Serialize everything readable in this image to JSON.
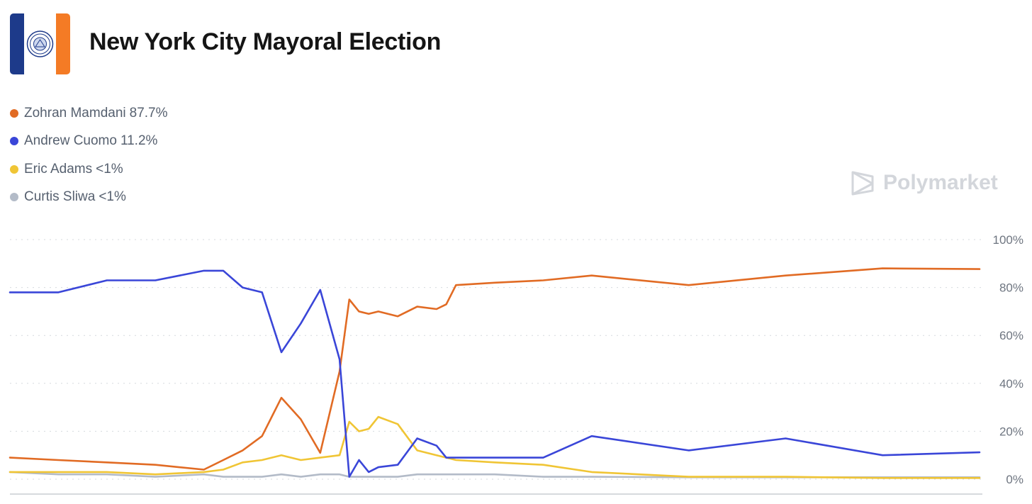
{
  "header": {
    "title": "New York City Mayoral Election",
    "logo_icon": "nyc-flag-seal-icon"
  },
  "watermark": {
    "text": "Polymarket",
    "icon": "polymarket-logo-icon"
  },
  "colors": {
    "mamdani": "#e16b24",
    "cuomo": "#3a46d8",
    "adams": "#f0c535",
    "sliwa": "#b3bbc8",
    "grid": "#d5d9de",
    "axis_text": "#6e7580"
  },
  "legend": [
    {
      "name": "Zohran Mamdani",
      "value": "87.7%",
      "color": "#e16b24"
    },
    {
      "name": "Andrew Cuomo",
      "value": "11.2%",
      "color": "#3a46d8"
    },
    {
      "name": "Eric Adams",
      "value": "<1%",
      "color": "#f0c535"
    },
    {
      "name": "Curtis Sliwa",
      "value": "<1%",
      "color": "#b3bbc8"
    }
  ],
  "chart_data": {
    "type": "line",
    "title": "New York City Mayoral Election",
    "xlabel": "",
    "ylabel": "",
    "ylim": [
      0,
      100
    ],
    "y_ticks": [
      "100%",
      "80%",
      "60%",
      "40%",
      "20%",
      "0%"
    ],
    "grid": true,
    "legend_position": "top-left",
    "x": [
      0,
      5,
      10,
      15,
      20,
      22,
      24,
      26,
      28,
      30,
      32,
      34,
      35,
      36,
      37,
      38,
      40,
      42,
      44,
      45,
      46,
      50,
      55,
      60,
      70,
      80,
      90,
      100
    ],
    "series": [
      {
        "name": "Zohran Mamdani",
        "color": "#e16b24",
        "values": [
          9,
          8,
          7,
          6,
          4,
          8,
          12,
          18,
          34,
          25,
          11,
          45,
          75,
          70,
          69,
          70,
          68,
          72,
          71,
          73,
          81,
          82,
          83,
          85,
          81,
          85,
          88,
          87.7
        ]
      },
      {
        "name": "Andrew Cuomo",
        "color": "#3a46d8",
        "values": [
          78,
          78,
          83,
          83,
          87,
          87,
          80,
          78,
          53,
          65,
          79,
          50,
          1,
          8,
          3,
          5,
          6,
          17,
          14,
          9,
          9,
          9,
          9,
          18,
          12,
          17,
          10,
          11.2
        ]
      },
      {
        "name": "Eric Adams",
        "color": "#f0c535",
        "values": [
          3,
          3,
          3,
          2,
          3,
          4,
          7,
          8,
          10,
          8,
          9,
          10,
          24,
          20,
          21,
          26,
          23,
          12,
          10,
          9,
          8,
          7,
          6,
          3,
          1,
          1,
          0.5,
          0.5
        ]
      },
      {
        "name": "Curtis Sliwa",
        "color": "#b3bbc8",
        "values": [
          3,
          2,
          2,
          1,
          2,
          1,
          1,
          1,
          2,
          1,
          2,
          2,
          1,
          1,
          1,
          1,
          1,
          2,
          2,
          2,
          2,
          2,
          1,
          1,
          0.8,
          0.8,
          0.8,
          0.8
        ]
      }
    ]
  }
}
